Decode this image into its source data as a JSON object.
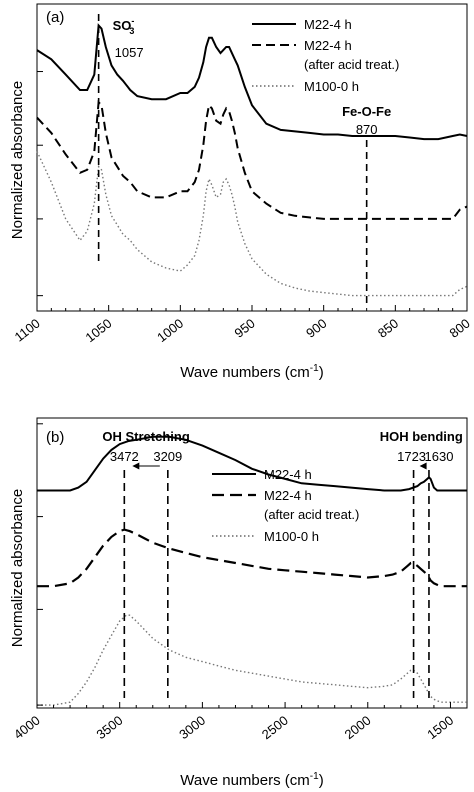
{
  "chart_data": [
    {
      "type": "line",
      "panel_label": "(a)",
      "xlabel": "Wave numbers (cm",
      "xlabel_sup": "-1",
      "xlabel_end": ")",
      "ylabel": "Normalized absorbance",
      "xlim": [
        1100,
        800
      ],
      "ylim": [
        0,
        1
      ],
      "x_ticks": [
        1100,
        1050,
        1000,
        950,
        900,
        850,
        800
      ],
      "y_ticks": [
        0.05,
        0.3,
        0.54,
        0.78
      ],
      "series": [
        {
          "name": "M22-4 h",
          "style": "solid",
          "x": [
            1100,
            1090,
            1080,
            1070,
            1065,
            1060,
            1057,
            1055,
            1052,
            1048,
            1044,
            1040,
            1035,
            1030,
            1020,
            1010,
            1000,
            995,
            990,
            987,
            984,
            982,
            980,
            978,
            975,
            972,
            970,
            968,
            966,
            964,
            962,
            960,
            955,
            950,
            940,
            930,
            920,
            910,
            900,
            890,
            880,
            870,
            860,
            850,
            840,
            830,
            820,
            810,
            805,
            800
          ],
          "y": [
            0.85,
            0.82,
            0.77,
            0.72,
            0.72,
            0.77,
            0.93,
            0.92,
            0.86,
            0.8,
            0.77,
            0.75,
            0.72,
            0.7,
            0.69,
            0.69,
            0.71,
            0.71,
            0.73,
            0.76,
            0.81,
            0.86,
            0.89,
            0.89,
            0.86,
            0.84,
            0.85,
            0.86,
            0.86,
            0.84,
            0.82,
            0.8,
            0.73,
            0.67,
            0.61,
            0.59,
            0.585,
            0.58,
            0.575,
            0.575,
            0.57,
            0.57,
            0.57,
            0.57,
            0.565,
            0.56,
            0.56,
            0.57,
            0.575,
            0.57
          ]
        },
        {
          "name": "M22-4 h",
          "style": "dashed",
          "x": [
            1100,
            1090,
            1080,
            1070,
            1065,
            1060,
            1057,
            1055,
            1052,
            1048,
            1044,
            1040,
            1035,
            1030,
            1020,
            1010,
            1000,
            995,
            990,
            987,
            984,
            982,
            980,
            978,
            975,
            972,
            970,
            968,
            966,
            964,
            962,
            960,
            955,
            950,
            940,
            930,
            920,
            910,
            900,
            890,
            880,
            870,
            860,
            850,
            840,
            830,
            820,
            810,
            805,
            800
          ],
          "y": [
            0.63,
            0.58,
            0.51,
            0.45,
            0.46,
            0.52,
            0.68,
            0.67,
            0.58,
            0.5,
            0.47,
            0.44,
            0.42,
            0.39,
            0.37,
            0.37,
            0.39,
            0.39,
            0.42,
            0.46,
            0.54,
            0.62,
            0.67,
            0.66,
            0.62,
            0.61,
            0.64,
            0.66,
            0.65,
            0.62,
            0.58,
            0.53,
            0.45,
            0.39,
            0.35,
            0.32,
            0.31,
            0.305,
            0.3,
            0.3,
            0.3,
            0.3,
            0.3,
            0.3,
            0.3,
            0.3,
            0.3,
            0.3,
            0.33,
            0.34
          ]
        },
        {
          "name": "M100-0 h",
          "style": "dotted",
          "x": [
            1100,
            1090,
            1080,
            1070,
            1065,
            1060,
            1057,
            1055,
            1052,
            1048,
            1044,
            1040,
            1035,
            1030,
            1020,
            1010,
            1000,
            995,
            990,
            987,
            984,
            982,
            980,
            978,
            975,
            972,
            970,
            968,
            966,
            964,
            962,
            960,
            955,
            950,
            940,
            930,
            920,
            910,
            900,
            890,
            880,
            870,
            860,
            850,
            840,
            830,
            820,
            810,
            805,
            800
          ],
          "y": [
            0.52,
            0.42,
            0.3,
            0.23,
            0.26,
            0.35,
            0.47,
            0.46,
            0.38,
            0.31,
            0.28,
            0.25,
            0.23,
            0.2,
            0.16,
            0.14,
            0.13,
            0.15,
            0.18,
            0.23,
            0.31,
            0.39,
            0.43,
            0.41,
            0.37,
            0.38,
            0.42,
            0.43,
            0.41,
            0.38,
            0.34,
            0.29,
            0.22,
            0.17,
            0.12,
            0.09,
            0.075,
            0.065,
            0.06,
            0.055,
            0.05,
            0.05,
            0.05,
            0.05,
            0.05,
            0.05,
            0.05,
            0.05,
            0.07,
            0.08
          ]
        }
      ],
      "legend": [
        {
          "label": "M22-4 h",
          "style": "solid"
        },
        {
          "label": "M22-4 h",
          "label2": "(after acid treat.)",
          "style": "dashed"
        },
        {
          "label": "M100-0 h",
          "style": "dotted"
        }
      ],
      "annotations": {
        "so3_text": "SO",
        "so3_sub": "3",
        "so3_sup": "-",
        "so3_value": "1057",
        "so3_x": 1057,
        "feofe_text": "Fe-O-Fe",
        "feofe_value": "870",
        "feofe_x": 870
      }
    },
    {
      "type": "line",
      "panel_label": "(b)",
      "xlabel": "Wave numbers (cm",
      "xlabel_sup": "-1",
      "xlabel_end": ")",
      "ylabel": "Normalized absorbance",
      "xlim": [
        4000,
        1400
      ],
      "ylim": [
        0,
        1
      ],
      "x_ticks": [
        4000,
        3500,
        3000,
        2500,
        2000,
        1500
      ],
      "y_ticks": [
        0.01,
        0.34,
        0.66,
        0.98
      ],
      "series": [
        {
          "name": "M22-4 h",
          "style": "solid",
          "x": [
            4000,
            3900,
            3800,
            3750,
            3700,
            3650,
            3600,
            3550,
            3500,
            3450,
            3400,
            3350,
            3300,
            3250,
            3200,
            3150,
            3100,
            3000,
            2900,
            2800,
            2700,
            2600,
            2500,
            2400,
            2300,
            2200,
            2100,
            2000,
            1900,
            1800,
            1750,
            1700,
            1680,
            1660,
            1640,
            1630,
            1620,
            1600,
            1580,
            1550,
            1500,
            1450,
            1400
          ],
          "y": [
            0.75,
            0.75,
            0.75,
            0.76,
            0.78,
            0.82,
            0.86,
            0.89,
            0.91,
            0.92,
            0.925,
            0.93,
            0.935,
            0.935,
            0.935,
            0.93,
            0.925,
            0.905,
            0.88,
            0.855,
            0.825,
            0.805,
            0.79,
            0.775,
            0.77,
            0.765,
            0.76,
            0.755,
            0.75,
            0.75,
            0.755,
            0.765,
            0.775,
            0.78,
            0.79,
            0.795,
            0.79,
            0.76,
            0.75,
            0.75,
            0.75,
            0.75,
            0.75
          ]
        },
        {
          "name": "M22-4 h",
          "style": "dashed",
          "x": [
            4000,
            3900,
            3800,
            3750,
            3700,
            3650,
            3600,
            3550,
            3500,
            3472,
            3440,
            3400,
            3350,
            3300,
            3250,
            3200,
            3100,
            3000,
            2900,
            2800,
            2700,
            2600,
            2500,
            2400,
            2300,
            2200,
            2100,
            2000,
            1900,
            1850,
            1800,
            1760,
            1740,
            1723,
            1700,
            1680,
            1660,
            1640,
            1620,
            1600,
            1560,
            1500,
            1450,
            1400
          ],
          "y": [
            0.42,
            0.42,
            0.43,
            0.45,
            0.48,
            0.52,
            0.56,
            0.59,
            0.61,
            0.615,
            0.61,
            0.6,
            0.585,
            0.57,
            0.56,
            0.55,
            0.535,
            0.52,
            0.51,
            0.5,
            0.49,
            0.48,
            0.475,
            0.47,
            0.465,
            0.46,
            0.455,
            0.45,
            0.455,
            0.46,
            0.47,
            0.49,
            0.5,
            0.5,
            0.49,
            0.48,
            0.47,
            0.46,
            0.44,
            0.43,
            0.42,
            0.42,
            0.42,
            0.42
          ]
        },
        {
          "name": "M100-0 h",
          "style": "dotted",
          "x": [
            4000,
            3900,
            3800,
            3750,
            3700,
            3650,
            3600,
            3550,
            3500,
            3460,
            3440,
            3400,
            3350,
            3300,
            3250,
            3200,
            3100,
            3000,
            2900,
            2800,
            2700,
            2600,
            2500,
            2400,
            2300,
            2200,
            2100,
            2000,
            1900,
            1850,
            1800,
            1760,
            1740,
            1723,
            1700,
            1680,
            1660,
            1640,
            1620,
            1600,
            1560,
            1500,
            1450,
            1400
          ],
          "y": [
            0.01,
            0.01,
            0.02,
            0.05,
            0.09,
            0.14,
            0.2,
            0.25,
            0.3,
            0.32,
            0.32,
            0.3,
            0.27,
            0.24,
            0.22,
            0.2,
            0.175,
            0.16,
            0.145,
            0.13,
            0.12,
            0.11,
            0.1,
            0.09,
            0.085,
            0.08,
            0.075,
            0.07,
            0.075,
            0.08,
            0.1,
            0.12,
            0.13,
            0.13,
            0.12,
            0.1,
            0.08,
            0.06,
            0.04,
            0.03,
            0.02,
            0.02,
            0.02,
            0.02
          ]
        }
      ],
      "legend": [
        {
          "label": "M22-4 h",
          "style": "solid"
        },
        {
          "label": "M22-4 h",
          "label2": "(after acid treat.)",
          "style": "dashed"
        },
        {
          "label": "M100-0 h",
          "style": "dotted"
        }
      ],
      "annotations": {
        "oh_title": "OH Stretching",
        "oh_value1": "3472",
        "oh_value2": "3209",
        "oh_x1": 3472,
        "oh_x2": 3209,
        "hoh_title": "HOH bending",
        "hoh_value1": "1723",
        "hoh_value2": "1630",
        "hoh_x1": 1723,
        "hoh_x2": 1630
      }
    }
  ]
}
